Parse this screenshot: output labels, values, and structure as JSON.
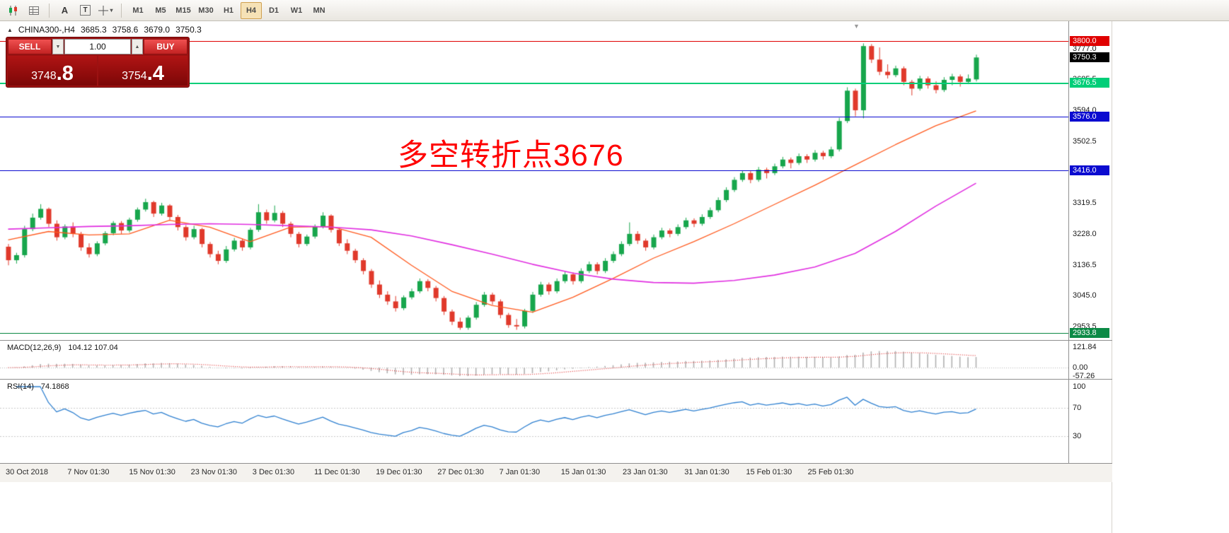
{
  "toolbar": {
    "timeframes": [
      "M1",
      "M5",
      "M15",
      "M30",
      "H1",
      "H4",
      "D1",
      "W1",
      "MN"
    ],
    "selected_timeframe": "H4",
    "text_tool_glyph": "A",
    "text_box_glyph": "T"
  },
  "chart": {
    "header": {
      "symbol": "CHINA300-,H4",
      "open": "3685.3",
      "high": "3758.6",
      "low": "3679.0",
      "close": "3750.3"
    },
    "annotation": {
      "text": "多空转折点3676",
      "color": "#ff0000"
    }
  },
  "trade_panel": {
    "sell_label": "SELL",
    "buy_label": "BUY",
    "volume": "1.00",
    "sell_price_main": "3748",
    "sell_price_big": ".8",
    "buy_price_main": "3754",
    "buy_price_big": ".4"
  },
  "price_axis": {
    "ticks": [
      3777.0,
      3685.5,
      3594.0,
      3502.5,
      3319.5,
      3228.0,
      3136.5,
      3045.0,
      2953.5
    ]
  },
  "chart_data": {
    "type": "candlestick",
    "title": "CHINA300- H4",
    "price_range": {
      "min": 2920,
      "max": 3820
    },
    "colors": {
      "up": "#17a64c",
      "down": "#e0392b",
      "ma_fast": "#ff5a1e",
      "ma_slow": "#e02ee0",
      "macd_hist": "#b0b0b0",
      "macd_signal": "#e03030",
      "rsi": "#2f80d0"
    },
    "candles": [
      [
        3190,
        3198,
        3135,
        3150
      ],
      [
        3150,
        3172,
        3140,
        3165
      ],
      [
        3165,
        3252,
        3158,
        3242
      ],
      [
        3242,
        3288,
        3236,
        3276
      ],
      [
        3276,
        3316,
        3270,
        3302
      ],
      [
        3302,
        3306,
        3248,
        3258
      ],
      [
        3258,
        3268,
        3208,
        3218
      ],
      [
        3218,
        3256,
        3212,
        3250
      ],
      [
        3250,
        3262,
        3218,
        3228
      ],
      [
        3228,
        3234,
        3178,
        3188
      ],
      [
        3188,
        3200,
        3158,
        3168
      ],
      [
        3168,
        3206,
        3162,
        3200
      ],
      [
        3200,
        3236,
        3194,
        3230
      ],
      [
        3230,
        3266,
        3224,
        3260
      ],
      [
        3260,
        3266,
        3228,
        3238
      ],
      [
        3238,
        3276,
        3232,
        3270
      ],
      [
        3270,
        3306,
        3264,
        3300
      ],
      [
        3300,
        3332,
        3294,
        3322
      ],
      [
        3322,
        3326,
        3278,
        3288
      ],
      [
        3288,
        3320,
        3282,
        3312
      ],
      [
        3312,
        3316,
        3268,
        3278
      ],
      [
        3278,
        3284,
        3238,
        3248
      ],
      [
        3248,
        3254,
        3208,
        3218
      ],
      [
        3218,
        3252,
        3212,
        3242
      ],
      [
        3242,
        3246,
        3188,
        3198
      ],
      [
        3198,
        3204,
        3158,
        3168
      ],
      [
        3168,
        3178,
        3138,
        3148
      ],
      [
        3148,
        3192,
        3142,
        3182
      ],
      [
        3182,
        3216,
        3176,
        3208
      ],
      [
        3208,
        3214,
        3178,
        3188
      ],
      [
        3188,
        3246,
        3182,
        3240
      ],
      [
        3240,
        3316,
        3234,
        3292
      ],
      [
        3292,
        3300,
        3258,
        3268
      ],
      [
        3268,
        3312,
        3262,
        3290
      ],
      [
        3290,
        3296,
        3248,
        3258
      ],
      [
        3258,
        3264,
        3218,
        3228
      ],
      [
        3228,
        3234,
        3188,
        3198
      ],
      [
        3198,
        3226,
        3192,
        3220
      ],
      [
        3220,
        3256,
        3214,
        3250
      ],
      [
        3250,
        3292,
        3244,
        3282
      ],
      [
        3282,
        3286,
        3232,
        3240
      ],
      [
        3240,
        3246,
        3192,
        3200
      ],
      [
        3200,
        3212,
        3168,
        3178
      ],
      [
        3178,
        3184,
        3142,
        3150
      ],
      [
        3150,
        3156,
        3108,
        3118
      ],
      [
        3118,
        3124,
        3068,
        3078
      ],
      [
        3078,
        3090,
        3038,
        3048
      ],
      [
        3048,
        3058,
        3018,
        3028
      ],
      [
        3028,
        3044,
        2998,
        3008
      ],
      [
        3008,
        3046,
        3002,
        3040
      ],
      [
        3040,
        3066,
        3034,
        3058
      ],
      [
        3058,
        3096,
        3052,
        3088
      ],
      [
        3088,
        3094,
        3058,
        3068
      ],
      [
        3068,
        3074,
        3028,
        3038
      ],
      [
        3038,
        3044,
        2988,
        2998
      ],
      [
        2998,
        3004,
        2958,
        2968
      ],
      [
        2968,
        2980,
        2944,
        2950
      ],
      [
        2950,
        2986,
        2944,
        2980
      ],
      [
        2980,
        3026,
        2974,
        3018
      ],
      [
        3018,
        3056,
        3012,
        3048
      ],
      [
        3048,
        3054,
        3018,
        3028
      ],
      [
        3028,
        3034,
        2978,
        2988
      ],
      [
        2988,
        2994,
        2950,
        2958
      ],
      [
        2958,
        2976,
        2944,
        2954
      ],
      [
        2954,
        3006,
        2948,
        3000
      ],
      [
        3000,
        3056,
        2994,
        3048
      ],
      [
        3048,
        3086,
        3042,
        3078
      ],
      [
        3078,
        3084,
        3048,
        3058
      ],
      [
        3058,
        3096,
        3052,
        3088
      ],
      [
        3088,
        3116,
        3082,
        3108
      ],
      [
        3108,
        3114,
        3078,
        3088
      ],
      [
        3088,
        3126,
        3082,
        3118
      ],
      [
        3118,
        3146,
        3112,
        3138
      ],
      [
        3138,
        3144,
        3108,
        3118
      ],
      [
        3118,
        3156,
        3112,
        3148
      ],
      [
        3148,
        3176,
        3142,
        3168
      ],
      [
        3168,
        3206,
        3162,
        3198
      ],
      [
        3198,
        3262,
        3192,
        3228
      ],
      [
        3228,
        3236,
        3198,
        3208
      ],
      [
        3208,
        3214,
        3178,
        3188
      ],
      [
        3188,
        3226,
        3182,
        3218
      ],
      [
        3218,
        3246,
        3212,
        3238
      ],
      [
        3238,
        3244,
        3218,
        3228
      ],
      [
        3228,
        3256,
        3222,
        3248
      ],
      [
        3248,
        3276,
        3242,
        3268
      ],
      [
        3268,
        3274,
        3248,
        3258
      ],
      [
        3258,
        3286,
        3252,
        3278
      ],
      [
        3278,
        3306,
        3272,
        3298
      ],
      [
        3298,
        3336,
        3292,
        3328
      ],
      [
        3328,
        3366,
        3322,
        3358
      ],
      [
        3358,
        3396,
        3352,
        3388
      ],
      [
        3388,
        3416,
        3382,
        3408
      ],
      [
        3408,
        3414,
        3378,
        3388
      ],
      [
        3388,
        3426,
        3382,
        3418
      ],
      [
        3418,
        3424,
        3392,
        3408
      ],
      [
        3408,
        3436,
        3402,
        3428
      ],
      [
        3428,
        3456,
        3422,
        3448
      ],
      [
        3448,
        3454,
        3422,
        3438
      ],
      [
        3438,
        3466,
        3432,
        3458
      ],
      [
        3458,
        3464,
        3438,
        3448
      ],
      [
        3448,
        3476,
        3442,
        3468
      ],
      [
        3468,
        3474,
        3448,
        3458
      ],
      [
        3458,
        3486,
        3452,
        3478
      ],
      [
        3478,
        3572,
        3472,
        3562
      ],
      [
        3562,
        3662,
        3556,
        3652
      ],
      [
        3652,
        3658,
        3576,
        3594
      ],
      [
        3594,
        3792,
        3570,
        3784
      ],
      [
        3784,
        3790,
        3734,
        3744
      ],
      [
        3744,
        3780,
        3698,
        3708
      ],
      [
        3708,
        3730,
        3688,
        3698
      ],
      [
        3698,
        3726,
        3692,
        3718
      ],
      [
        3718,
        3724,
        3668,
        3678
      ],
      [
        3678,
        3684,
        3638,
        3658
      ],
      [
        3658,
        3696,
        3652,
        3688
      ],
      [
        3688,
        3694,
        3658,
        3668
      ],
      [
        3668,
        3680,
        3644,
        3654
      ],
      [
        3654,
        3692,
        3648,
        3684
      ],
      [
        3684,
        3702,
        3668,
        3694
      ],
      [
        3694,
        3700,
        3664,
        3678
      ],
      [
        3678,
        3700,
        3672,
        3688
      ],
      [
        3685.3,
        3758.6,
        3679.0,
        3750.3
      ]
    ],
    "moving_averages": [
      {
        "name": "fast-ma",
        "color": "#ff5a1e",
        "width": 1.3,
        "sample_step": 5,
        "values": [
          3210,
          3235,
          3225,
          3228,
          3268,
          3248,
          3205,
          3248,
          3250,
          3218,
          3135,
          3058,
          3016,
          2996,
          3040,
          3096,
          3156,
          3205,
          3258,
          3315,
          3372,
          3432,
          3492,
          3548,
          3592
        ]
      },
      {
        "name": "slow-ma",
        "color": "#e02ee0",
        "width": 1.6,
        "sample_step": 5,
        "values": [
          3242,
          3246,
          3250,
          3252,
          3256,
          3258,
          3256,
          3252,
          3248,
          3240,
          3222,
          3196,
          3168,
          3138,
          3112,
          3094,
          3084,
          3082,
          3090,
          3106,
          3130,
          3170,
          3235,
          3310,
          3378
        ]
      }
    ],
    "levels": [
      {
        "price": 3800.0,
        "label": "3800.0",
        "color": "#e00000",
        "line": true,
        "line_width": 1
      },
      {
        "price": 3750.3,
        "label": "3750.3",
        "color": "#000000",
        "line": false,
        "line_width": 0
      },
      {
        "price": 3676.5,
        "label": "3676.5",
        "color": "#00ce78",
        "line": true,
        "line_width": 2
      },
      {
        "price": 3576.0,
        "label": "3576.0",
        "color": "#0b0bd0",
        "line": true,
        "line_width": 1
      },
      {
        "price": 3416.0,
        "label": "3416.0",
        "color": "#0b0bd0",
        "line": true,
        "line_width": 1
      },
      {
        "price": 2933.8,
        "label": "2933.8",
        "color": "#0c8a46",
        "line": true,
        "line_width": 1
      }
    ],
    "macd": {
      "name": "MACD(12,26,9)",
      "values": "104.12 107.04",
      "fast": 12,
      "slow": 26,
      "signal": 9,
      "axis": [
        "121.84",
        "0.00",
        "-57.26"
      ]
    },
    "rsi": {
      "name": "RSI(14)",
      "value": "74.1868",
      "period": 14,
      "axis": [
        "100",
        "70",
        "30"
      ],
      "levels": [
        70,
        30
      ]
    },
    "time_labels": [
      "30 Oct 2018",
      "7 Nov 01:30",
      "15 Nov 01:30",
      "23 Nov 01:30",
      "3 Dec 01:30",
      "11 Dec 01:30",
      "19 Dec 01:30",
      "27 Dec 01:30",
      "7 Jan 01:30",
      "15 Jan 01:30",
      "23 Jan 01:30",
      "31 Jan 01:30",
      "15 Feb 01:30",
      "25 Feb 01:30"
    ]
  }
}
